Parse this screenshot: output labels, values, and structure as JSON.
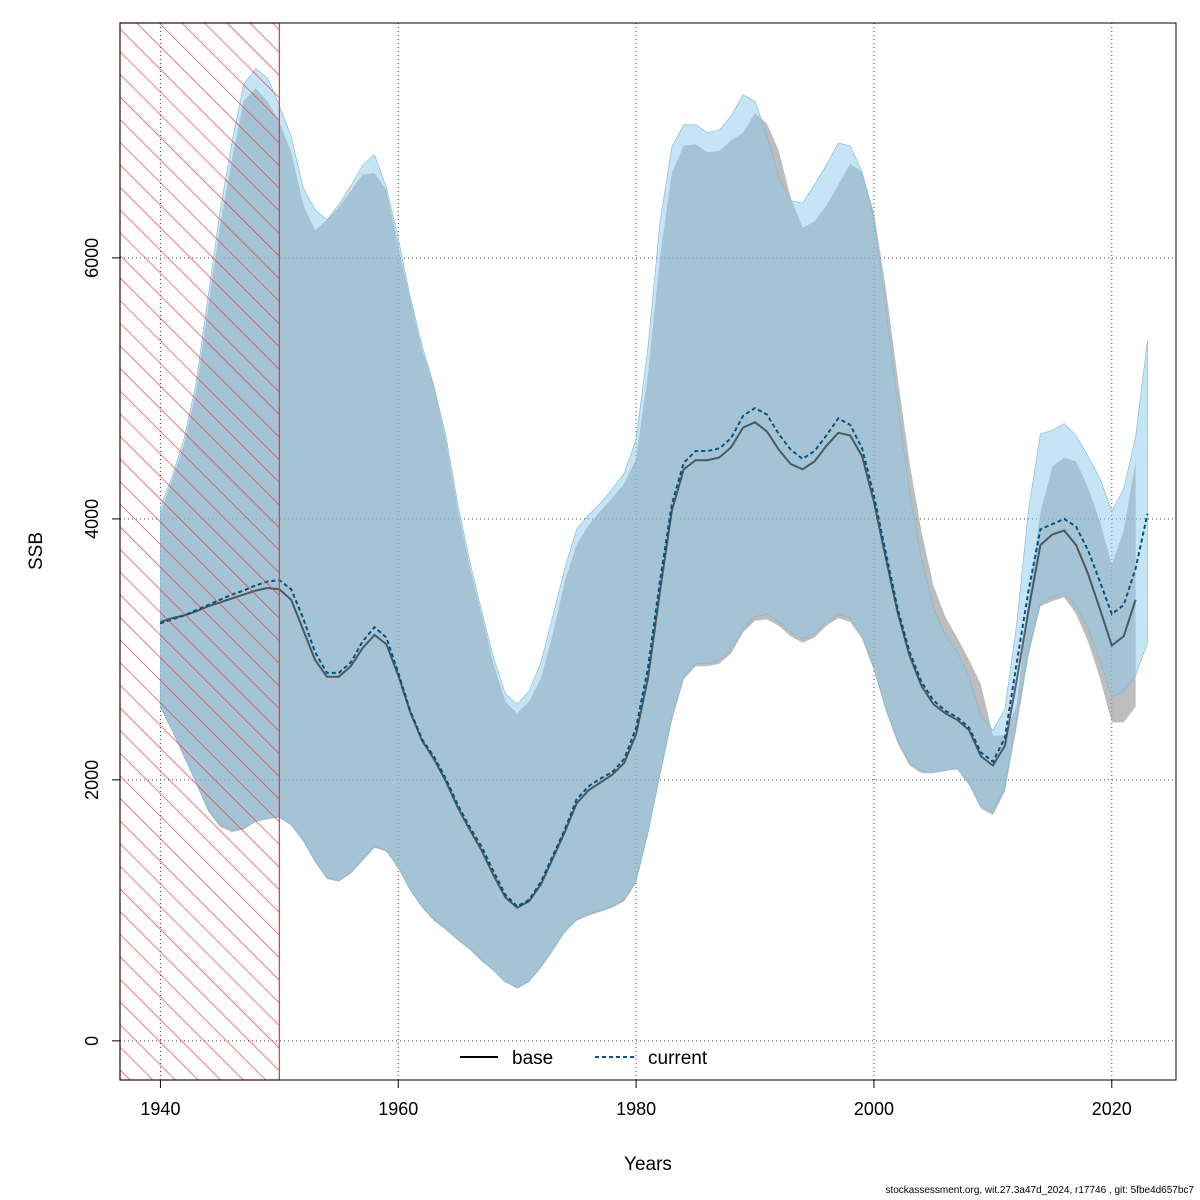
{
  "footer_text": "stockassessment.org, wit.27.3a47d_2024, r17746 , git: 5fbe4d657bc7",
  "chart_data": {
    "type": "line",
    "title": "",
    "xlabel": "Years",
    "ylabel": "SSB",
    "xlim": [
      1936.6,
      2025.4
    ],
    "ylim": [
      -300,
      7800
    ],
    "xticks": [
      1940,
      1960,
      1980,
      2000,
      2020
    ],
    "yticks": [
      0,
      2000,
      4000,
      6000
    ],
    "grid": true,
    "legend_position": "bottom-center",
    "hatched_region": {
      "x_from": 1936.6,
      "x_to": 1950,
      "color": "#e8343a"
    },
    "series": [
      {
        "name": "base",
        "line_style": "solid",
        "line_color": "#000000",
        "band_color": "#999999",
        "x": [
          1940,
          1941,
          1942,
          1943,
          1944,
          1945,
          1946,
          1947,
          1948,
          1949,
          1950,
          1951,
          1952,
          1953,
          1954,
          1955,
          1956,
          1957,
          1958,
          1959,
          1960,
          1961,
          1962,
          1963,
          1964,
          1965,
          1966,
          1967,
          1968,
          1969,
          1970,
          1971,
          1972,
          1973,
          1974,
          1975,
          1976,
          1977,
          1978,
          1979,
          1980,
          1981,
          1982,
          1983,
          1984,
          1985,
          1986,
          1987,
          1988,
          1989,
          1990,
          1991,
          1992,
          1993,
          1994,
          1995,
          1996,
          1997,
          1998,
          1999,
          2000,
          2001,
          2002,
          2003,
          2004,
          2005,
          2006,
          2007,
          2008,
          2009,
          2010,
          2011,
          2012,
          2013,
          2014,
          2015,
          2016,
          2017,
          2018,
          2019,
          2020,
          2021,
          2022
        ],
        "y": [
          3210,
          3240,
          3260,
          3290,
          3330,
          3360,
          3390,
          3420,
          3450,
          3470,
          3460,
          3380,
          3150,
          2920,
          2790,
          2790,
          2870,
          3010,
          3110,
          3040,
          2800,
          2520,
          2300,
          2160,
          1990,
          1790,
          1620,
          1460,
          1270,
          1100,
          1020,
          1070,
          1200,
          1400,
          1600,
          1820,
          1920,
          1980,
          2040,
          2130,
          2350,
          2780,
          3440,
          4060,
          4380,
          4450,
          4450,
          4470,
          4550,
          4700,
          4740,
          4670,
          4530,
          4420,
          4380,
          4440,
          4560,
          4660,
          4640,
          4480,
          4130,
          3700,
          3280,
          2950,
          2720,
          2580,
          2510,
          2460,
          2380,
          2180,
          2110,
          2260,
          2760,
          3300,
          3800,
          3880,
          3910,
          3800,
          3580,
          3310,
          3030,
          3100,
          3380
        ],
        "lower": [
          2550,
          2370,
          2170,
          1970,
          1760,
          1640,
          1600,
          1620,
          1680,
          1700,
          1710,
          1650,
          1530,
          1370,
          1240,
          1220,
          1280,
          1380,
          1480,
          1450,
          1320,
          1150,
          1020,
          920,
          850,
          770,
          700,
          610,
          540,
          450,
          400,
          450,
          560,
          690,
          830,
          920,
          960,
          990,
          1020,
          1070,
          1210,
          1580,
          2020,
          2450,
          2770,
          2870,
          2870,
          2890,
          2970,
          3130,
          3220,
          3230,
          3180,
          3100,
          3050,
          3090,
          3180,
          3240,
          3210,
          3080,
          2840,
          2530,
          2280,
          2110,
          2050,
          2050,
          2070,
          2080,
          1960,
          1780,
          1730,
          1910,
          2400,
          2950,
          3330,
          3370,
          3400,
          3270,
          3060,
          2780,
          2440,
          2440,
          2560
        ],
        "upper": [
          4050,
          4300,
          4580,
          4980,
          5620,
          6240,
          6750,
          7200,
          7300,
          7200,
          7040,
          6810,
          6410,
          6210,
          6290,
          6390,
          6510,
          6640,
          6650,
          6520,
          6090,
          5680,
          5300,
          5020,
          4610,
          4080,
          3640,
          3270,
          2890,
          2600,
          2510,
          2600,
          2780,
          3120,
          3520,
          3800,
          3950,
          4060,
          4160,
          4270,
          4460,
          5110,
          6000,
          6650,
          6860,
          6870,
          6810,
          6820,
          6900,
          6960,
          7110,
          7030,
          6820,
          6460,
          6230,
          6280,
          6400,
          6560,
          6720,
          6660,
          6350,
          5770,
          5080,
          4430,
          3900,
          3490,
          3250,
          3090,
          2920,
          2730,
          2340,
          2340,
          2570,
          3390,
          4050,
          4400,
          4470,
          4440,
          4240,
          3980,
          3650,
          3910,
          4440
        ]
      },
      {
        "name": "current",
        "line_style": "dashed",
        "line_color": "#04598c",
        "band_color": "#8ccbed",
        "x": [
          1940,
          1941,
          1942,
          1943,
          1944,
          1945,
          1946,
          1947,
          1948,
          1949,
          1950,
          1951,
          1952,
          1953,
          1954,
          1955,
          1956,
          1957,
          1958,
          1959,
          1960,
          1961,
          1962,
          1963,
          1964,
          1965,
          1966,
          1967,
          1968,
          1969,
          1970,
          1971,
          1972,
          1973,
          1974,
          1975,
          1976,
          1977,
          1978,
          1979,
          1980,
          1981,
          1982,
          1983,
          1984,
          1985,
          1986,
          1987,
          1988,
          1989,
          1990,
          1991,
          1992,
          1993,
          1994,
          1995,
          1996,
          1997,
          1998,
          1999,
          2000,
          2001,
          2002,
          2003,
          2004,
          2005,
          2006,
          2007,
          2008,
          2009,
          2010,
          2011,
          2012,
          2013,
          2014,
          2015,
          2016,
          2017,
          2018,
          2019,
          2020,
          2021,
          2022,
          2023
        ],
        "y": [
          3200,
          3230,
          3260,
          3300,
          3340,
          3380,
          3420,
          3450,
          3490,
          3520,
          3530,
          3460,
          3240,
          2980,
          2820,
          2820,
          2900,
          3060,
          3170,
          3090,
          2820,
          2530,
          2310,
          2180,
          2010,
          1810,
          1640,
          1490,
          1300,
          1120,
          1030,
          1080,
          1220,
          1420,
          1620,
          1850,
          1950,
          2010,
          2060,
          2160,
          2400,
          2860,
          3520,
          4110,
          4430,
          4520,
          4520,
          4540,
          4620,
          4790,
          4850,
          4800,
          4650,
          4530,
          4460,
          4520,
          4640,
          4770,
          4720,
          4540,
          4180,
          3740,
          3310,
          2980,
          2750,
          2610,
          2530,
          2480,
          2400,
          2210,
          2140,
          2320,
          2890,
          3450,
          3920,
          3960,
          4000,
          3940,
          3760,
          3520,
          3270,
          3340,
          3620,
          4040
        ],
        "lower": [
          2560,
          2380,
          2180,
          1980,
          1780,
          1660,
          1620,
          1630,
          1680,
          1700,
          1720,
          1660,
          1540,
          1380,
          1250,
          1230,
          1290,
          1390,
          1490,
          1460,
          1330,
          1160,
          1030,
          930,
          860,
          780,
          710,
          620,
          540,
          450,
          410,
          460,
          570,
          700,
          840,
          930,
          970,
          1000,
          1030,
          1080,
          1230,
          1600,
          2040,
          2470,
          2790,
          2890,
          2890,
          2920,
          3000,
          3160,
          3250,
          3270,
          3210,
          3130,
          3080,
          3120,
          3210,
          3270,
          3240,
          3110,
          2860,
          2550,
          2300,
          2130,
          2070,
          2060,
          2070,
          2090,
          1980,
          1800,
          1750,
          1950,
          2460,
          3000,
          3350,
          3400,
          3430,
          3330,
          3160,
          2920,
          2630,
          2680,
          2800,
          3050
        ],
        "upper": [
          4090,
          4330,
          4620,
          5040,
          5700,
          6350,
          6880,
          7330,
          7450,
          7380,
          7170,
          6930,
          6540,
          6370,
          6290,
          6410,
          6550,
          6710,
          6790,
          6540,
          6150,
          5700,
          5330,
          5020,
          4640,
          4120,
          3680,
          3300,
          2940,
          2660,
          2580,
          2680,
          2900,
          3260,
          3620,
          3920,
          4030,
          4120,
          4230,
          4350,
          4610,
          5320,
          6270,
          6850,
          7020,
          7020,
          6960,
          6980,
          7090,
          7250,
          7200,
          6940,
          6620,
          6440,
          6420,
          6560,
          6710,
          6880,
          6860,
          6660,
          6300,
          5620,
          4880,
          4200,
          3690,
          3320,
          3110,
          2980,
          2790,
          2490,
          2380,
          2540,
          3190,
          4070,
          4650,
          4680,
          4730,
          4640,
          4480,
          4310,
          4060,
          4230,
          4630,
          5370
        ]
      }
    ]
  }
}
